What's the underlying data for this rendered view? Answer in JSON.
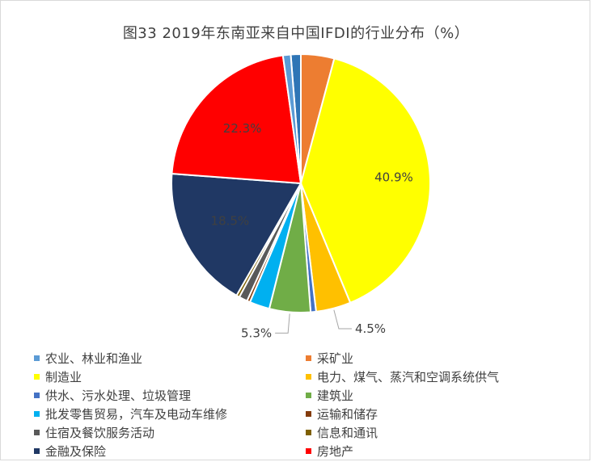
{
  "chart_data": {
    "type": "pie",
    "title": "图33 2019年东南亚来自中国IFDI的行业分布（%）",
    "categories": [
      "农业、林业和渔业",
      "采矿业",
      "制造业",
      "电力、煤气、蒸汽和空调系统供气",
      "供水、污水处理、垃圾管理",
      "建筑业",
      "批发零售贸易，汽车及电动车维修",
      "运输和储存",
      "住宿及餐饮服务活动",
      "信息和通讯",
      "金融及保险",
      "房地产"
    ],
    "slice_order": [
      1,
      0,
      2,
      3,
      4,
      5,
      6,
      7,
      8,
      9,
      10,
      11
    ],
    "values": [
      1.0,
      4.3,
      40.9,
      4.5,
      0.7,
      5.3,
      2.6,
      0.4,
      1.1,
      0.4,
      18.5,
      22.3
    ],
    "colors": [
      "#5b9bd5",
      "#ed7d31",
      "#ffff00",
      "#ffc000",
      "#4472c4",
      "#70ad47",
      "#00b0f0",
      "#843c0c",
      "#595959",
      "#7f6000",
      "#203864",
      "#ff0000"
    ],
    "first_slice_color": "#2e75b6",
    "data_labels": [
      {
        "index": 2,
        "text": "40.9%"
      },
      {
        "index": 3,
        "text": "4.5%"
      },
      {
        "index": 5,
        "text": "5.3%"
      },
      {
        "index": 10,
        "text": "18.5%"
      },
      {
        "index": 11,
        "text": "22.3%"
      }
    ],
    "legend_position": "bottom"
  }
}
